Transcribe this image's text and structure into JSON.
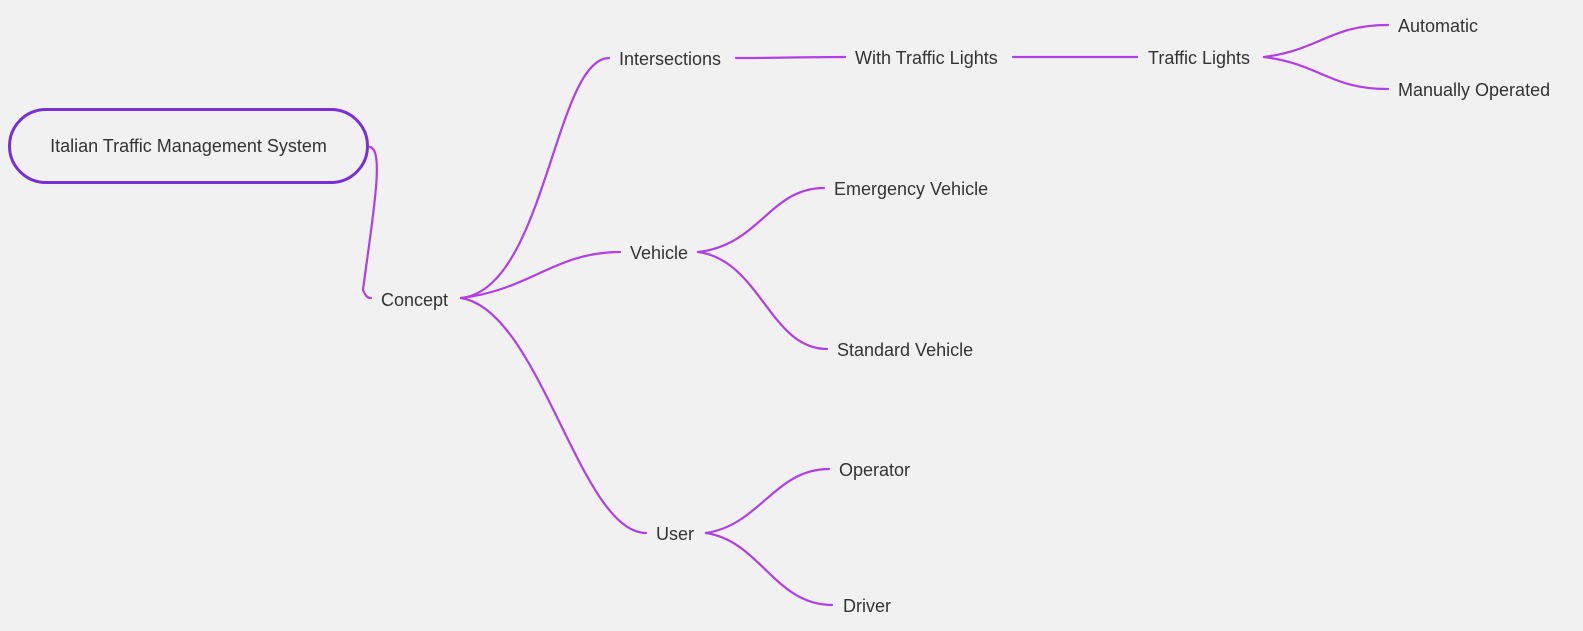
{
  "colors": {
    "background": "#f2f1f2",
    "root_border": "#7a2fd6",
    "link": "#b13fe6",
    "text": "#333333"
  },
  "mindmap": {
    "root": "Italian Traffic Management System",
    "concept": "Concept",
    "intersections": "Intersections",
    "with_traffic_lights": "With Traffic Lights",
    "traffic_lights": "Traffic Lights",
    "automatic": "Automatic",
    "manually_operated": "Manually Operated",
    "vehicle": "Vehicle",
    "emergency_vehicle": "Emergency Vehicle",
    "standard_vehicle": "Standard Vehicle",
    "user": "User",
    "operator": "Operator",
    "driver": "Driver"
  }
}
